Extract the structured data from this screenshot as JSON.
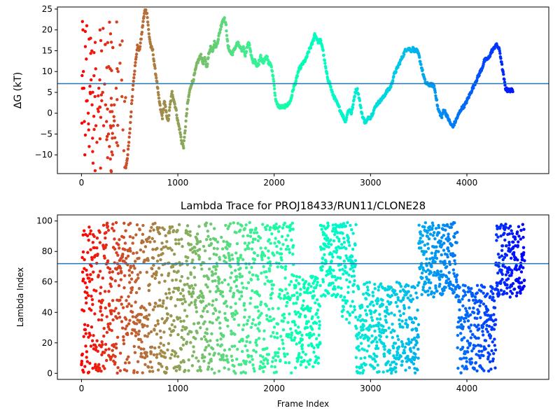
{
  "chart_data": [
    {
      "type": "scatter",
      "title": "",
      "xlabel": "",
      "ylabel": "ΔG (kT)",
      "xlim": [
        -250,
        4850
      ],
      "ylim": [
        -14.5,
        25.5
      ],
      "xticks": [
        0,
        1000,
        2000,
        3000,
        4000
      ],
      "yticks": [
        -10,
        -5,
        0,
        5,
        10,
        15,
        20,
        25
      ],
      "reference_line": 7.1,
      "reference_line_color": "#1f77b4",
      "colormap": "rainbow (red at frame 0 → purple at last frame)",
      "marker_size": "small",
      "frame_range": [
        0,
        4600
      ],
      "early_scatter": {
        "x_range": [
          0,
          460
        ],
        "y_range": [
          -14,
          22
        ],
        "points": [
          [
            10,
            22
          ],
          [
            15,
            20
          ],
          [
            20,
            10
          ],
          [
            25,
            6
          ],
          [
            30,
            -2
          ],
          [
            35,
            -10
          ],
          [
            40,
            16
          ],
          [
            50,
            13
          ],
          [
            55,
            21
          ],
          [
            60,
            3
          ],
          [
            70,
            0
          ],
          [
            75,
            -4
          ],
          [
            80,
            -8
          ],
          [
            90,
            5
          ],
          [
            95,
            18
          ],
          [
            100,
            8
          ],
          [
            110,
            2
          ],
          [
            115,
            -6
          ],
          [
            120,
            -12
          ],
          [
            130,
            9
          ],
          [
            140,
            4
          ],
          [
            150,
            -3
          ],
          [
            160,
            -7
          ],
          [
            170,
            1
          ],
          [
            180,
            6
          ],
          [
            190,
            8
          ],
          [
            200,
            -1
          ],
          [
            210,
            3
          ],
          [
            220,
            5
          ],
          [
            230,
            -3
          ],
          [
            240,
            7
          ],
          [
            250,
            2
          ],
          [
            260,
            -2
          ],
          [
            270,
            1
          ],
          [
            280,
            -5
          ],
          [
            290,
            -8
          ],
          [
            300,
            -11
          ],
          [
            310,
            -14
          ],
          [
            320,
            -6
          ],
          [
            330,
            -3
          ],
          [
            340,
            2
          ],
          [
            360,
            6
          ],
          [
            380,
            10
          ],
          [
            400,
            12
          ],
          [
            420,
            4
          ],
          [
            430,
            -4
          ],
          [
            440,
            -9
          ],
          [
            450,
            -13
          ]
        ]
      },
      "trace": [
        [
          460,
          -13
        ],
        [
          480,
          -10
        ],
        [
          500,
          -5
        ],
        [
          520,
          2
        ],
        [
          540,
          8
        ],
        [
          560,
          12
        ],
        [
          580,
          16
        ],
        [
          600,
          15
        ],
        [
          620,
          18
        ],
        [
          640,
          22
        ],
        [
          660,
          25
        ],
        [
          680,
          24
        ],
        [
          700,
          19
        ],
        [
          720,
          16
        ],
        [
          740,
          15
        ],
        [
          760,
          11
        ],
        [
          780,
          8
        ],
        [
          800,
          4
        ],
        [
          820,
          1
        ],
        [
          840,
          -1
        ],
        [
          860,
          3
        ],
        [
          880,
          0
        ],
        [
          900,
          -2
        ],
        [
          920,
          2
        ],
        [
          940,
          5
        ],
        [
          960,
          3
        ],
        [
          980,
          1
        ],
        [
          1000,
          -2
        ],
        [
          1020,
          -4
        ],
        [
          1040,
          -7
        ],
        [
          1060,
          -8
        ],
        [
          1080,
          -3
        ],
        [
          1100,
          2
        ],
        [
          1120,
          5
        ],
        [
          1140,
          7
        ],
        [
          1160,
          8
        ],
        [
          1180,
          10
        ],
        [
          1200,
          12
        ],
        [
          1220,
          13
        ],
        [
          1240,
          14
        ],
        [
          1260,
          12
        ],
        [
          1280,
          13
        ],
        [
          1300,
          11
        ],
        [
          1320,
          14
        ],
        [
          1340,
          16
        ],
        [
          1360,
          15
        ],
        [
          1380,
          17
        ],
        [
          1400,
          16
        ],
        [
          1420,
          18
        ],
        [
          1440,
          20
        ],
        [
          1460,
          22
        ],
        [
          1480,
          23
        ],
        [
          1500,
          21
        ],
        [
          1520,
          16
        ],
        [
          1540,
          15
        ],
        [
          1560,
          14
        ],
        [
          1580,
          15
        ],
        [
          1600,
          16
        ],
        [
          1620,
          17
        ],
        [
          1640,
          16
        ],
        [
          1660,
          15
        ],
        [
          1680,
          16
        ],
        [
          1700,
          14
        ],
        [
          1720,
          16
        ],
        [
          1740,
          17
        ],
        [
          1760,
          14
        ],
        [
          1780,
          12
        ],
        [
          1800,
          13
        ],
        [
          1820,
          11
        ],
        [
          1840,
          12
        ],
        [
          1860,
          14
        ],
        [
          1880,
          12
        ],
        [
          1900,
          13
        ],
        [
          1920,
          14
        ],
        [
          1940,
          12
        ],
        [
          1960,
          12
        ],
        [
          1980,
          10
        ],
        [
          2000,
          7
        ],
        [
          2010,
          4
        ],
        [
          2030,
          2
        ],
        [
          2060,
          1.5
        ],
        [
          2100,
          1.5
        ],
        [
          2140,
          2
        ],
        [
          2170,
          3
        ],
        [
          2200,
          6
        ],
        [
          2230,
          8
        ],
        [
          2250,
          10
        ],
        [
          2270,
          11
        ],
        [
          2300,
          12
        ],
        [
          2330,
          13
        ],
        [
          2360,
          15
        ],
        [
          2380,
          16
        ],
        [
          2400,
          17
        ],
        [
          2420,
          19
        ],
        [
          2440,
          18
        ],
        [
          2460,
          17
        ],
        [
          2480,
          17.5
        ],
        [
          2500,
          16
        ],
        [
          2520,
          13
        ],
        [
          2540,
          10
        ],
        [
          2560,
          8
        ],
        [
          2580,
          7
        ],
        [
          2600,
          5
        ],
        [
          2620,
          4
        ],
        [
          2640,
          3
        ],
        [
          2660,
          2
        ],
        [
          2680,
          1
        ],
        [
          2700,
          0
        ],
        [
          2720,
          -1
        ],
        [
          2740,
          -2
        ],
        [
          2760,
          0
        ],
        [
          2780,
          1
        ],
        [
          2800,
          0
        ],
        [
          2820,
          2
        ],
        [
          2840,
          5
        ],
        [
          2860,
          6
        ],
        [
          2880,
          4
        ],
        [
          2900,
          1
        ],
        [
          2920,
          -1
        ],
        [
          2940,
          -2
        ],
        [
          2960,
          -2
        ],
        [
          2980,
          -1
        ],
        [
          3000,
          -1
        ],
        [
          3020,
          0
        ],
        [
          3040,
          1
        ],
        [
          3060,
          2
        ],
        [
          3080,
          2.5
        ],
        [
          3100,
          3
        ],
        [
          3120,
          3.5
        ],
        [
          3140,
          4
        ],
        [
          3160,
          5
        ],
        [
          3180,
          5.5
        ],
        [
          3200,
          6
        ],
        [
          3220,
          7
        ],
        [
          3240,
          9
        ],
        [
          3260,
          10
        ],
        [
          3280,
          11
        ],
        [
          3300,
          12
        ],
        [
          3320,
          13
        ],
        [
          3340,
          14
        ],
        [
          3360,
          15
        ],
        [
          3380,
          15.5
        ],
        [
          3400,
          15.5
        ],
        [
          3420,
          15
        ],
        [
          3440,
          15.5
        ],
        [
          3460,
          15
        ],
        [
          3480,
          15
        ],
        [
          3500,
          14
        ],
        [
          3520,
          12
        ],
        [
          3540,
          10
        ],
        [
          3560,
          8
        ],
        [
          3580,
          7
        ],
        [
          3600,
          7
        ],
        [
          3620,
          6.8
        ],
        [
          3640,
          6.8
        ],
        [
          3660,
          6.5
        ],
        [
          3680,
          4
        ],
        [
          3700,
          1
        ],
        [
          3720,
          0
        ],
        [
          3740,
          -1
        ],
        [
          3760,
          1
        ],
        [
          3780,
          0
        ],
        [
          3800,
          -1
        ],
        [
          3820,
          -2
        ],
        [
          3840,
          -3
        ],
        [
          3860,
          -3
        ],
        [
          3880,
          -2
        ],
        [
          3900,
          -1
        ],
        [
          3920,
          0
        ],
        [
          3940,
          1
        ],
        [
          3960,
          1.5
        ],
        [
          3980,
          2
        ],
        [
          4000,
          3
        ],
        [
          4020,
          4
        ],
        [
          4040,
          5
        ],
        [
          4060,
          6
        ],
        [
          4080,
          7
        ],
        [
          4100,
          8
        ],
        [
          4120,
          9
        ],
        [
          4140,
          10
        ],
        [
          4160,
          11
        ],
        [
          4180,
          12.5
        ],
        [
          4200,
          13
        ],
        [
          4220,
          13
        ],
        [
          4240,
          14
        ],
        [
          4260,
          15
        ],
        [
          4280,
          15.5
        ],
        [
          4300,
          16.5
        ],
        [
          4320,
          16
        ],
        [
          4340,
          15
        ],
        [
          4360,
          12
        ],
        [
          4380,
          9
        ],
        [
          4400,
          6
        ],
        [
          4420,
          5.5
        ],
        [
          4450,
          5.5
        ],
        [
          4480,
          5.5
        ]
      ]
    },
    {
      "type": "scatter",
      "title": "Lambda Trace for PROJ18433/RUN11/CLONE28",
      "xlabel": "Frame Index",
      "ylabel": "Lambda Index",
      "xlim": [
        -250,
        4850
      ],
      "ylim": [
        -4,
        104
      ],
      "xticks": [
        0,
        1000,
        2000,
        3000,
        4000
      ],
      "yticks": [
        0,
        20,
        40,
        60,
        80,
        100
      ],
      "reference_line": 72,
      "reference_line_color": "#1f77b4",
      "colormap": "rainbow (red at frame 0 → purple at last frame)",
      "marker_size": "small",
      "frame_range": [
        0,
        4600
      ],
      "lambda_range": [
        0,
        99
      ]
    }
  ]
}
